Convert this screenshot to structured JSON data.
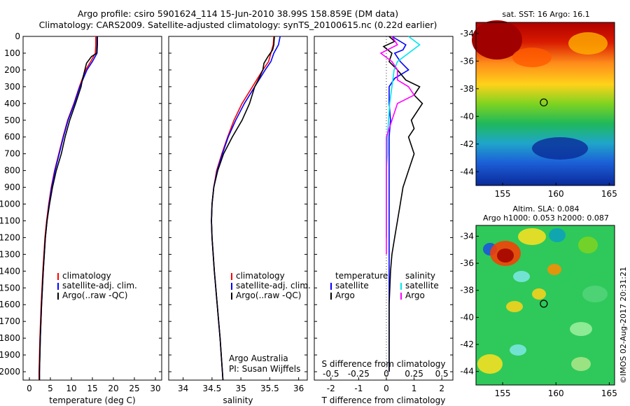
{
  "header": {
    "line1": "Argo profile: csiro 5901624_114 15-Jun-2010 38.99S 158.859E (DM data)",
    "line2": "Climatology: CARS2009. Satellite-adjusted climatology: synTS_20100615.nc (0.22d earlier)"
  },
  "sst_map": {
    "title": "sat. SST: 16 Argo: 16.1",
    "xticks": [
      155,
      160,
      165
    ],
    "yticks": [
      -34,
      -36,
      -38,
      -40,
      -42,
      -44
    ],
    "float_lon": 158.859,
    "float_lat": -38.99
  },
  "sla_map": {
    "title_line1": "Altim. SLA: 0.084",
    "title_line2": "Argo h1000: 0.053 h2000: 0.087",
    "xticks": [
      155,
      160,
      165
    ],
    "yticks": [
      -34,
      -36,
      -38,
      -40,
      -42,
      -44
    ],
    "float_lon": 158.859,
    "float_lat": -38.99
  },
  "side_label": "©IMOS 02-Aug-2017 20:31:21",
  "colors": {
    "climatology": "#ff0000",
    "satellite": "#0000ff",
    "argo": "#000000",
    "sal_satellite": "#00e5ee",
    "sal_argo": "#ff00ff"
  },
  "chart_data": [
    {
      "type": "line",
      "xlabel": "temperature (deg C)",
      "xlim": [
        -1.5,
        31.5
      ],
      "xticks": [
        0,
        5,
        10,
        15,
        20,
        25,
        30
      ],
      "ylim": [
        2050,
        0
      ],
      "yticks": [
        0,
        100,
        200,
        300,
        400,
        500,
        600,
        700,
        800,
        900,
        1000,
        1100,
        1200,
        1300,
        1400,
        1500,
        1600,
        1700,
        1800,
        1900,
        2000
      ],
      "legend": [
        "climatology",
        "satellite-adj. clim.",
        "Argo(..raw -QC)"
      ],
      "legend_position": "lower-middle",
      "series": [
        {
          "name": "climatology",
          "depth": [
            0,
            50,
            100,
            150,
            200,
            300,
            400,
            500,
            600,
            700,
            800,
            900,
            1000,
            1100,
            1200,
            1400,
            1600,
            1800,
            2000,
            2050
          ],
          "values": [
            15.8,
            15.8,
            15.7,
            14.6,
            13.4,
            11.9,
            10.6,
            9.1,
            8.0,
            7.0,
            6.0,
            5.2,
            4.6,
            4.1,
            3.7,
            3.2,
            2.8,
            2.5,
            2.3,
            2.3
          ]
        },
        {
          "name": "satellite-adj. clim.",
          "depth": [
            0,
            50,
            100,
            150,
            200,
            300,
            400,
            500,
            600,
            700,
            800,
            900,
            1000,
            1100,
            1200,
            1400,
            1600,
            1800,
            2000,
            2050
          ],
          "values": [
            16.2,
            16.2,
            16.1,
            15.0,
            13.7,
            12.0,
            10.7,
            9.2,
            8.1,
            7.1,
            6.1,
            5.3,
            4.7,
            4.2,
            3.8,
            3.3,
            2.9,
            2.6,
            2.4,
            2.4
          ]
        },
        {
          "name": "Argo(..raw -QC)",
          "depth": [
            0,
            50,
            100,
            120,
            160,
            200,
            260,
            300,
            400,
            500,
            600,
            700,
            800,
            900,
            1000,
            1100,
            1200,
            1400,
            1600,
            1800,
            2000,
            2050
          ],
          "values": [
            16.1,
            16.1,
            16.0,
            14.8,
            13.6,
            13.2,
            12.6,
            12.3,
            11.0,
            9.6,
            8.5,
            7.6,
            6.4,
            5.5,
            4.8,
            4.2,
            3.8,
            3.3,
            2.9,
            2.6,
            2.4,
            2.4
          ]
        }
      ]
    },
    {
      "type": "line",
      "xlabel": "salinity",
      "xlim": [
        33.75,
        36.15
      ],
      "xticks": [
        34,
        34.5,
        35,
        35.5,
        36
      ],
      "ylim": [
        2050,
        0
      ],
      "legend": [
        "climatology",
        "satellite-adj. clim.",
        "Argo(..raw -QC)"
      ],
      "legend_position": "lower-middle",
      "annotation": [
        "Argo Australia",
        "PI: Susan Wijffels"
      ],
      "series": [
        {
          "name": "climatology",
          "depth": [
            0,
            50,
            100,
            150,
            200,
            300,
            400,
            500,
            600,
            700,
            800,
            900,
            1000,
            1100,
            1200,
            1400,
            1600,
            1800,
            2000,
            2050
          ],
          "values": [
            35.57,
            35.56,
            35.52,
            35.48,
            35.38,
            35.2,
            35.02,
            34.88,
            34.77,
            34.67,
            34.58,
            34.53,
            34.5,
            34.49,
            34.5,
            34.54,
            34.59,
            34.64,
            34.68,
            34.69
          ]
        },
        {
          "name": "satellite-adj. clim.",
          "depth": [
            0,
            50,
            100,
            150,
            200,
            300,
            400,
            500,
            600,
            700,
            800,
            900,
            1000,
            1100,
            1200,
            1400,
            1600,
            1800,
            2000,
            2050
          ],
          "values": [
            35.68,
            35.65,
            35.57,
            35.52,
            35.42,
            35.24,
            35.06,
            34.91,
            34.78,
            34.68,
            34.59,
            34.53,
            34.5,
            34.49,
            34.5,
            34.54,
            34.59,
            34.64,
            34.68,
            34.69
          ]
        },
        {
          "name": "Argo(..raw -QC)",
          "depth": [
            0,
            50,
            80,
            120,
            160,
            200,
            260,
            300,
            400,
            500,
            600,
            700,
            800,
            900,
            1000,
            1100,
            1200,
            1400,
            1600,
            1800,
            2000,
            2050
          ],
          "values": [
            35.58,
            35.57,
            35.55,
            35.47,
            35.4,
            35.38,
            35.3,
            35.24,
            35.15,
            35.02,
            34.85,
            34.7,
            34.6,
            34.53,
            34.5,
            34.49,
            34.5,
            34.54,
            34.59,
            34.64,
            34.68,
            34.69
          ]
        }
      ]
    },
    {
      "type": "line",
      "xlabel": "T difference from climatology",
      "xlabel_top": "S difference from climatology",
      "xlim": [
        -2.6,
        2.4
      ],
      "xticks": [
        -2,
        -1,
        0,
        1,
        2
      ],
      "xticks_top": [
        -0.5,
        -0.25,
        0,
        0.25,
        0.5
      ],
      "xticks_top_labels": [
        "-0.5",
        "-0.25",
        "0",
        "0.25",
        "0.5"
      ],
      "ylim": [
        2050,
        0
      ],
      "legend_groups": [
        {
          "heading": "temperature",
          "items": [
            "satellite",
            "Argo"
          ]
        },
        {
          "heading": "salinity",
          "items": [
            "satellite",
            "Argo"
          ]
        }
      ],
      "series": [
        {
          "name": "satellite",
          "group": "temperature",
          "depth": [
            0,
            50,
            80,
            100,
            150,
            200,
            250,
            300,
            400,
            500,
            600,
            800,
            1000,
            1200,
            1400,
            1600,
            1800,
            2000
          ],
          "values": [
            0.2,
            0.7,
            0.6,
            0.3,
            0.5,
            0.8,
            0.3,
            0.1,
            0.1,
            0.15,
            0.1,
            0.1,
            0.1,
            0.1,
            0.1,
            0.1,
            0.1,
            0.1
          ]
        },
        {
          "name": "Argo",
          "group": "temperature",
          "depth": [
            0,
            30,
            60,
            100,
            150,
            200,
            260,
            300,
            350,
            400,
            450,
            500,
            550,
            600,
            700,
            800,
            900,
            1000,
            1100,
            1200,
            1300,
            1400,
            1600,
            1800,
            2000
          ],
          "values": [
            0.1,
            0.3,
            -0.1,
            0.2,
            0.1,
            0.4,
            0.7,
            1.2,
            1.0,
            1.3,
            1.1,
            0.9,
            1.0,
            0.8,
            1.0,
            0.8,
            0.6,
            0.5,
            0.4,
            0.3,
            0.2,
            0.15,
            0.1,
            0.1,
            0.1
          ]
        },
        {
          "name": "satellite",
          "group": "salinity",
          "depth": [
            0,
            50,
            100,
            150,
            200,
            300,
            400,
            500,
            600,
            700,
            800,
            900,
            1000,
            1100,
            1200
          ],
          "values": [
            0.2,
            0.3,
            0.2,
            0.1,
            0.07,
            0.05,
            0.03,
            0.02,
            0.01,
            0.01,
            0.0,
            0.0,
            0.0,
            0.0,
            0.0
          ]
        },
        {
          "name": "Argo",
          "group": "salinity",
          "depth": [
            0,
            50,
            100,
            150,
            200,
            260,
            300,
            350,
            400,
            500,
            600,
            700,
            800,
            900,
            1000,
            1100,
            1200,
            1300
          ],
          "values": [
            0.05,
            0.1,
            -0.05,
            0.05,
            0.1,
            0.1,
            0.2,
            0.25,
            0.1,
            0.05,
            0.0,
            0.0,
            0.0,
            0.0,
            0.0,
            0.0,
            0.0,
            0.0
          ]
        }
      ]
    }
  ]
}
